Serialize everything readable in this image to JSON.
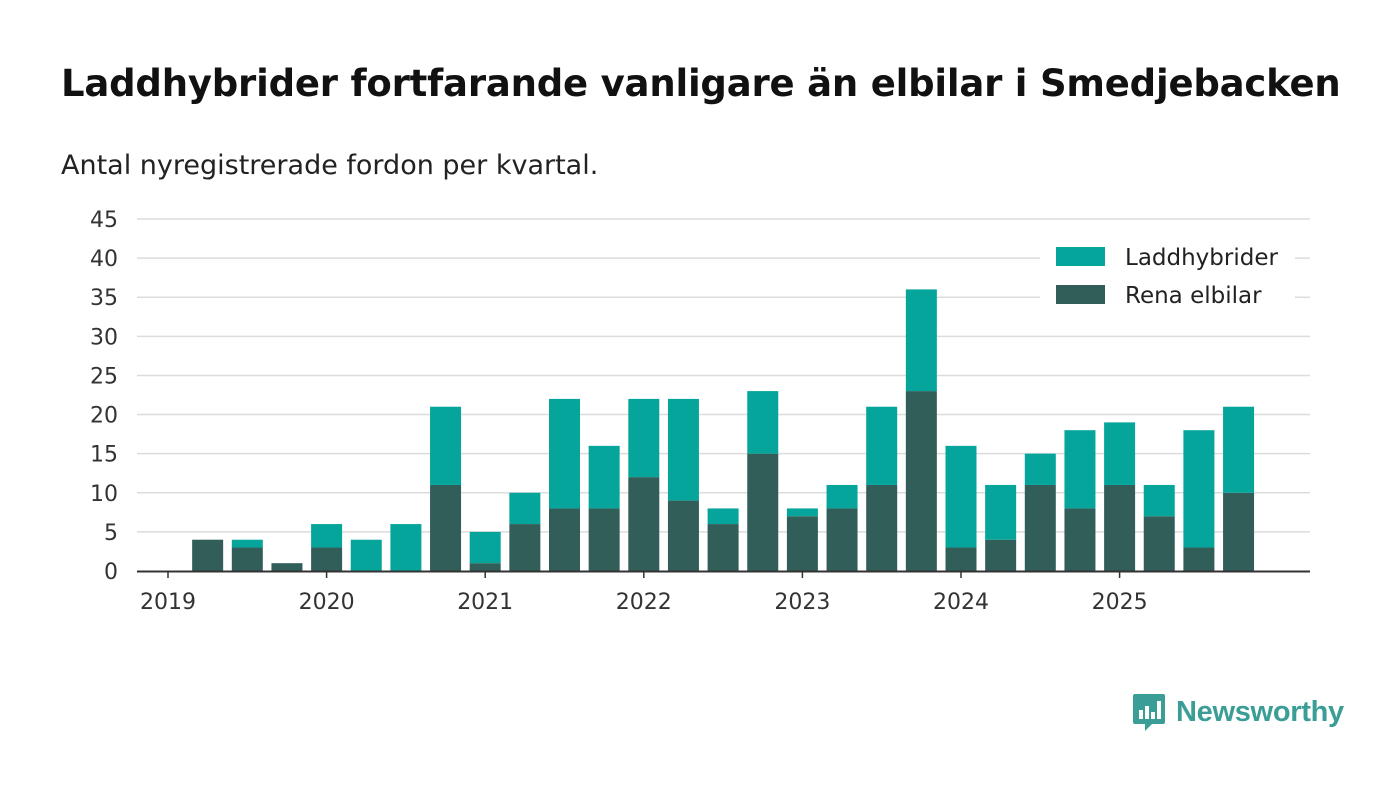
{
  "header": {
    "title": "Laddhybrider fortfarande vanligare än elbilar i Smedjebacken",
    "subtitle": "Antal nyregistrerade fordon per kvartal."
  },
  "brand": {
    "name": "Newsworthy",
    "icon": "newsworthy-logo-icon",
    "color": "#3a9d96"
  },
  "chart_data": {
    "type": "bar",
    "stacked": true,
    "title": "Laddhybrider fortfarande vanligare än elbilar i Smedjebacken",
    "subtitle": "Antal nyregistrerade fordon per kvartal.",
    "xlabel": "",
    "ylabel": "",
    "ylim": [
      0,
      45
    ],
    "yticks": [
      "0",
      "5",
      "10",
      "15",
      "20",
      "25",
      "30",
      "35",
      "40",
      "45"
    ],
    "xticks": [
      "2019",
      "2020",
      "2021",
      "2022",
      "2023",
      "2024",
      "2025"
    ],
    "grid": true,
    "legend_position": "top-right",
    "categories": [
      "2019 Q1",
      "2019 Q2",
      "2019 Q3",
      "2019 Q4",
      "2020 Q1",
      "2020 Q2",
      "2020 Q3",
      "2020 Q4",
      "2021 Q1",
      "2021 Q2",
      "2021 Q3",
      "2021 Q4",
      "2022 Q1",
      "2022 Q2",
      "2022 Q3",
      "2022 Q4",
      "2023 Q1",
      "2023 Q2",
      "2023 Q3",
      "2023 Q4",
      "2024 Q1",
      "2024 Q2",
      "2024 Q3",
      "2024 Q4",
      "2025 Q1",
      "2025 Q2",
      "2025 Q3",
      "2025 Q4"
    ],
    "series": [
      {
        "name": "Rena elbilar",
        "color": "#325e5a",
        "values": [
          0,
          4,
          3,
          1,
          3,
          0,
          0,
          11,
          1,
          6,
          8,
          8,
          12,
          9,
          6,
          15,
          7,
          8,
          11,
          23,
          3,
          4,
          11,
          8,
          11,
          7,
          3,
          10
        ]
      },
      {
        "name": "Laddhybrider",
        "color": "#05a59c",
        "values": [
          0,
          0,
          1,
          0,
          3,
          4,
          6,
          10,
          4,
          4,
          14,
          8,
          10,
          13,
          2,
          8,
          1,
          3,
          10,
          13,
          13,
          7,
          4,
          10,
          8,
          4,
          15,
          11
        ]
      }
    ],
    "legend": [
      {
        "name": "Laddhybrider",
        "color": "#05a59c"
      },
      {
        "name": "Rena elbilar",
        "color": "#325e5a"
      }
    ]
  }
}
